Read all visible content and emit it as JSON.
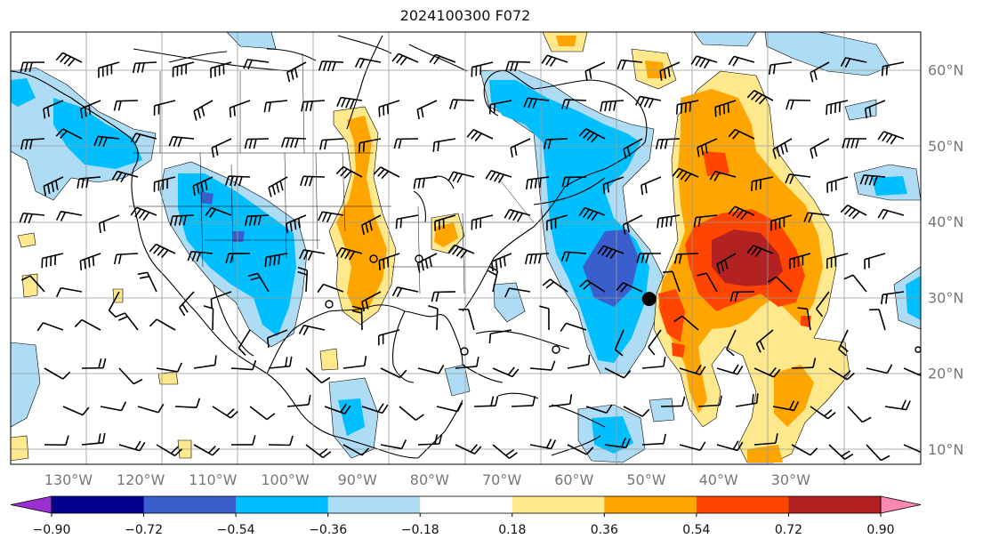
{
  "title": "2024100300 F072",
  "map": {
    "lon_range": [
      -138,
      -12
    ],
    "lat_range": [
      8,
      65
    ],
    "lat_ticks": [
      {
        "value": 10,
        "label": "10°N"
      },
      {
        "value": 20,
        "label": "20°N"
      },
      {
        "value": 30,
        "label": "30°N"
      },
      {
        "value": 40,
        "label": "40°N"
      },
      {
        "value": 50,
        "label": "50°N"
      },
      {
        "value": 60,
        "label": "60°N"
      }
    ],
    "lon_ticks": [
      {
        "value": -130,
        "label": "130°W"
      },
      {
        "value": -120,
        "label": "120°W"
      },
      {
        "value": -110,
        "label": "110°W"
      },
      {
        "value": -100,
        "label": "100°W"
      },
      {
        "value": -90,
        "label": "90°W"
      },
      {
        "value": -80,
        "label": "80°W"
      },
      {
        "value": -70,
        "label": "70°W"
      },
      {
        "value": -60,
        "label": "60°W"
      },
      {
        "value": -50,
        "label": "50°W"
      },
      {
        "value": -40,
        "label": "40°W"
      },
      {
        "value": -30,
        "label": "30°W"
      }
    ],
    "marker": {
      "lon": -49.6,
      "lat": 29.8,
      "color": "#000000"
    }
  },
  "colorbar": {
    "under_color": "#9b30d0",
    "over_color": "#ff88b0",
    "bins": [
      {
        "from": -0.9,
        "to": -0.72,
        "color": "#00008b"
      },
      {
        "from": -0.72,
        "to": -0.54,
        "color": "#3a5fcd"
      },
      {
        "from": -0.54,
        "to": -0.36,
        "color": "#00bfff"
      },
      {
        "from": -0.36,
        "to": -0.18,
        "color": "#aedcf5"
      },
      {
        "from": -0.18,
        "to": 0.18,
        "color": "#ffffff"
      },
      {
        "from": 0.18,
        "to": 0.36,
        "color": "#ffe98c"
      },
      {
        "from": 0.36,
        "to": 0.54,
        "color": "#ffa500"
      },
      {
        "from": 0.54,
        "to": 0.72,
        "color": "#ff4500"
      },
      {
        "from": 0.72,
        "to": 0.9,
        "color": "#b22222"
      }
    ],
    "tick_labels": [
      "−0.90",
      "−0.72",
      "−0.54",
      "−0.36",
      "−0.18",
      "0.18",
      "0.36",
      "0.54",
      "0.72",
      "0.90"
    ]
  }
}
